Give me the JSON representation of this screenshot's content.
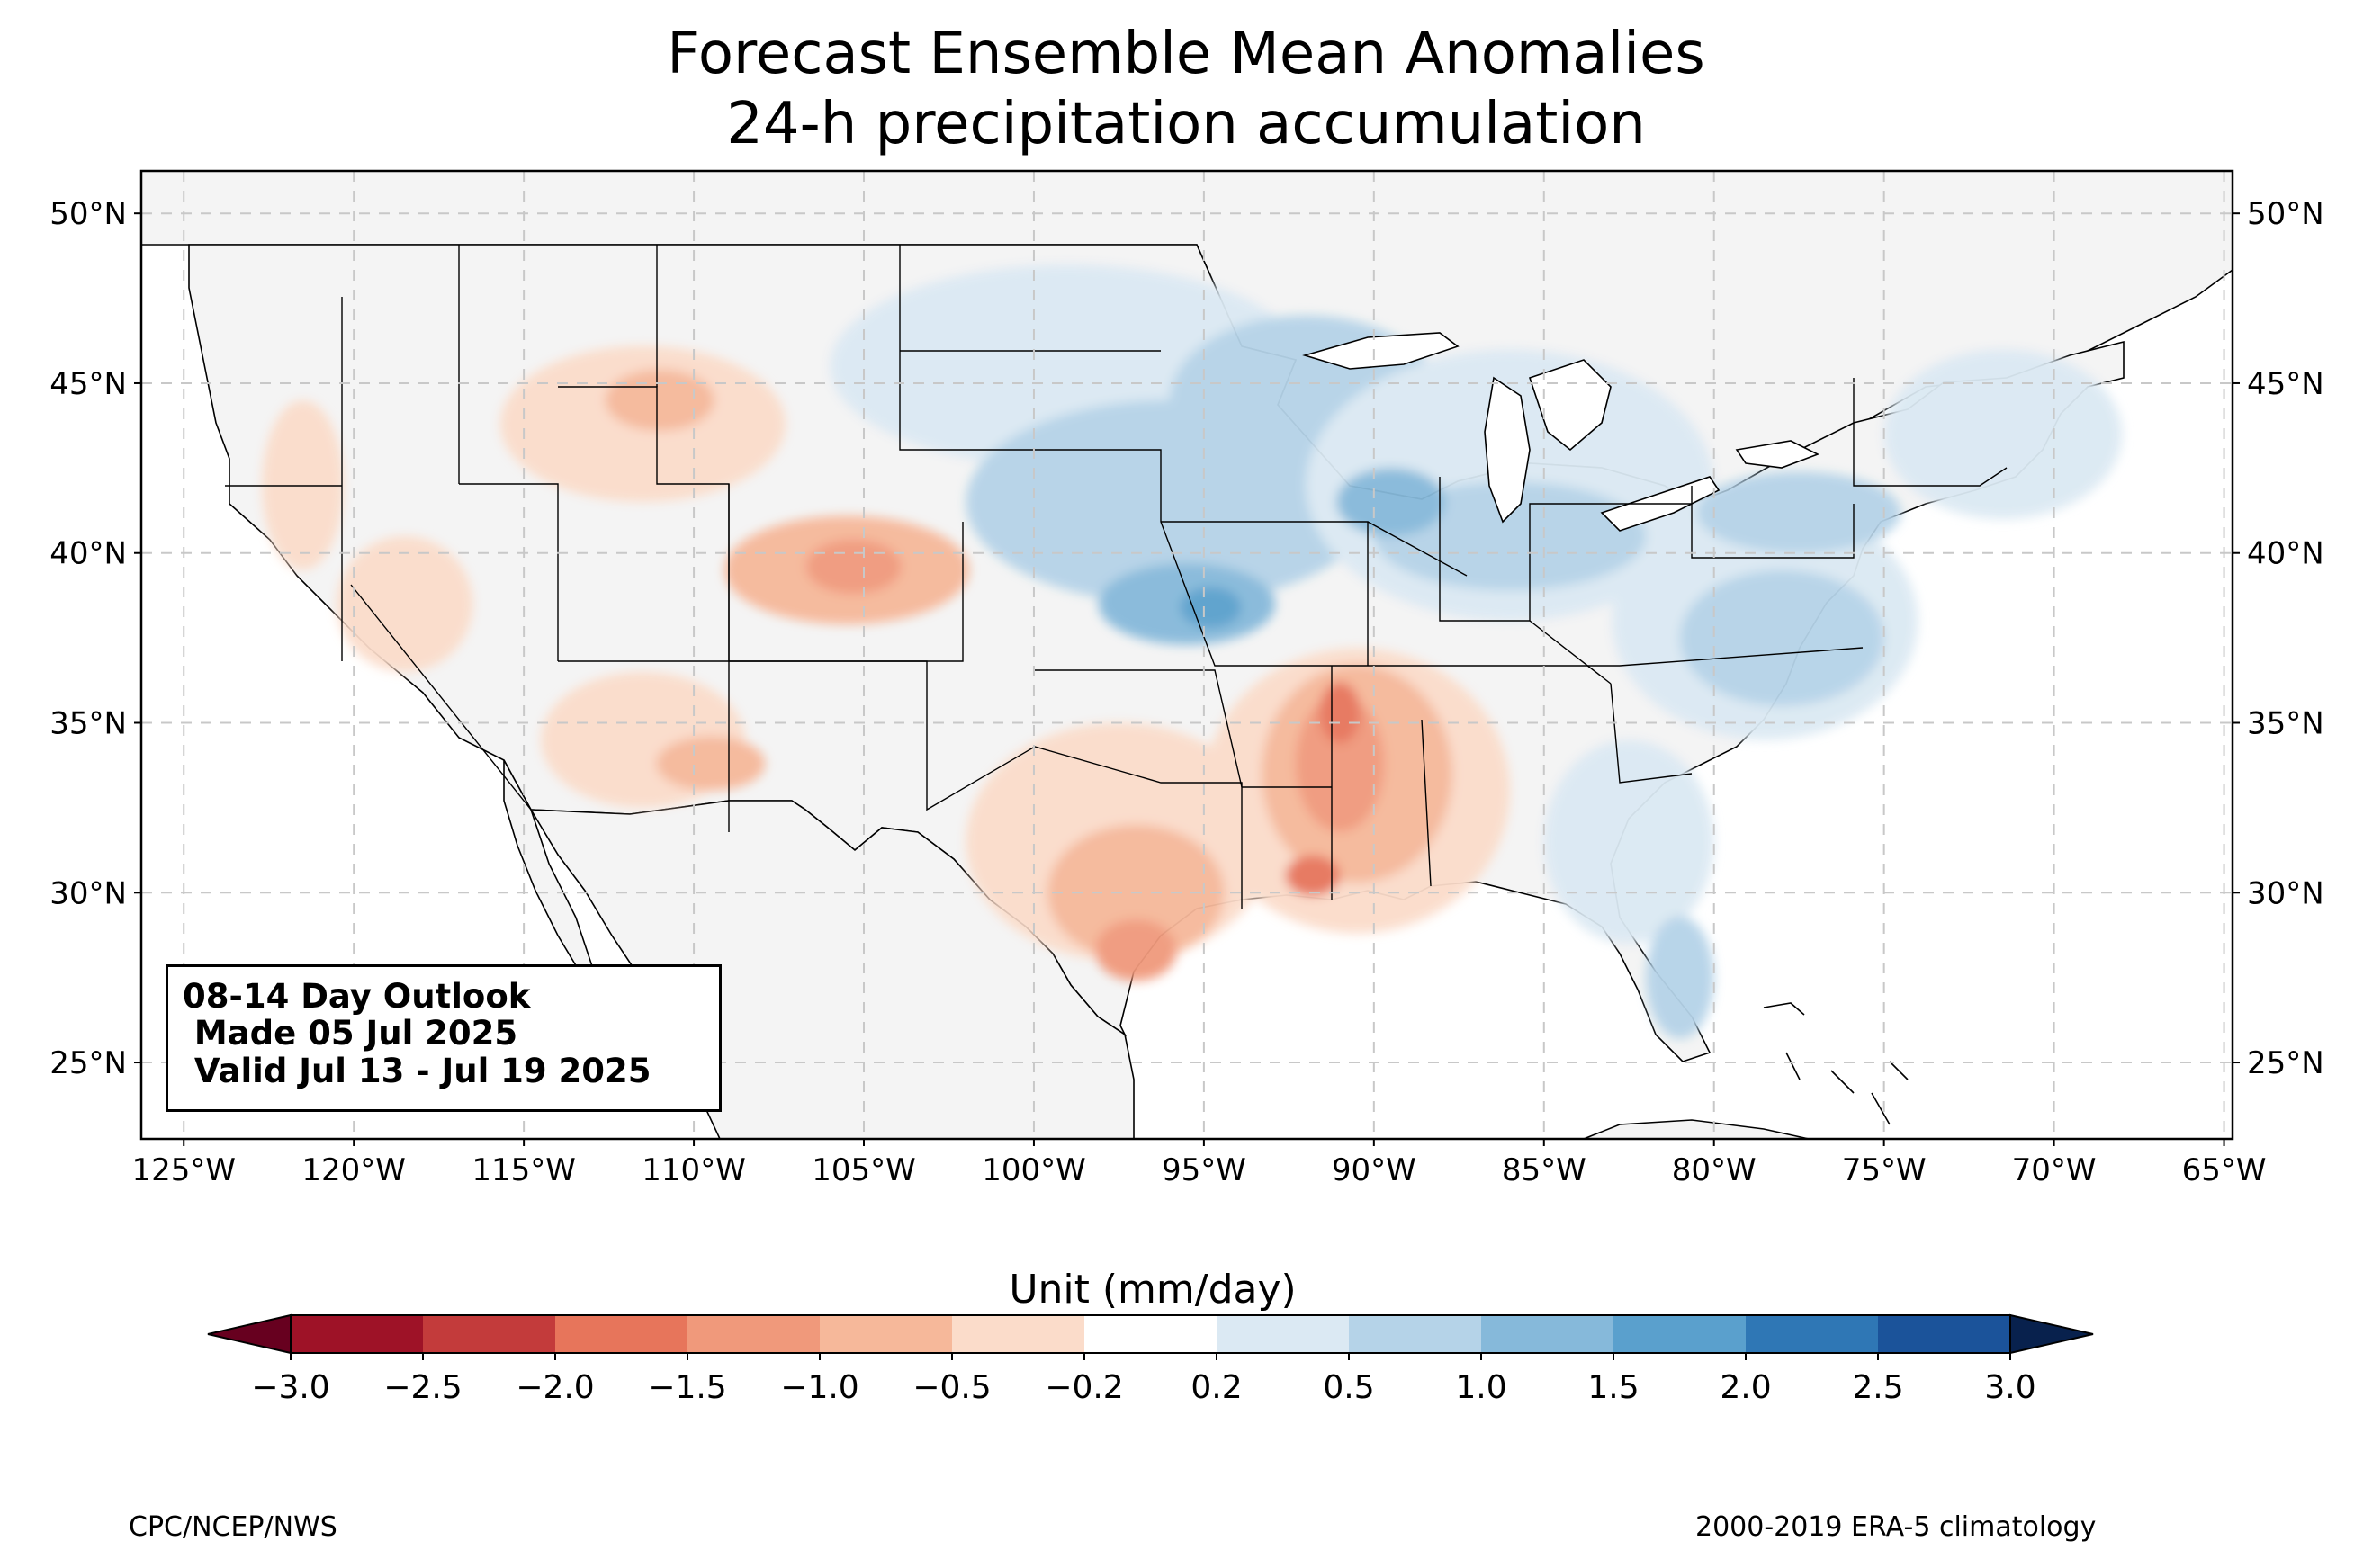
{
  "title": {
    "line1": "Forecast Ensemble Mean Anomalies",
    "line2": "24-h precipitation accumulation"
  },
  "map": {
    "projection": "PlateCarree",
    "lon_range": [
      -126.25,
      -64.75
    ],
    "lat_range": [
      22.75,
      51.25
    ],
    "gridlines": "dashed",
    "lon_ticks": [
      {
        "value": -125,
        "label": "125°W"
      },
      {
        "value": -120,
        "label": "120°W"
      },
      {
        "value": -115,
        "label": "115°W"
      },
      {
        "value": -110,
        "label": "110°W"
      },
      {
        "value": -105,
        "label": "105°W"
      },
      {
        "value": -100,
        "label": "100°W"
      },
      {
        "value": -95,
        "label": "95°W"
      },
      {
        "value": -90,
        "label": "90°W"
      },
      {
        "value": -85,
        "label": "85°W"
      },
      {
        "value": -80,
        "label": "80°W"
      },
      {
        "value": -75,
        "label": "75°W"
      },
      {
        "value": -70,
        "label": "70°W"
      },
      {
        "value": -65,
        "label": "65°W"
      }
    ],
    "lat_ticks": [
      {
        "value": 50,
        "label": "50°N"
      },
      {
        "value": 45,
        "label": "45°N"
      },
      {
        "value": 40,
        "label": "40°N"
      },
      {
        "value": 35,
        "label": "35°N"
      },
      {
        "value": 30,
        "label": "30°N"
      },
      {
        "value": 25,
        "label": "25°N"
      }
    ],
    "land_color": "#f4f4f4",
    "anomaly_regions": [
      {
        "name": "northern-rockies-dry",
        "color": "#fbdcca",
        "lon": -111.5,
        "lat": 43.8,
        "rlon": 4.2,
        "rlat": 2.3
      },
      {
        "name": "northern-rockies-dry-core",
        "color": "#f6b89a",
        "lon": -111.0,
        "lat": 44.5,
        "rlon": 1.6,
        "rlat": 0.9
      },
      {
        "name": "colorado-dry",
        "color": "#f6b89a",
        "lon": -105.5,
        "lat": 39.5,
        "rlon": 3.6,
        "rlat": 1.6
      },
      {
        "name": "colorado-dry-core",
        "color": "#f0997b",
        "lon": -105.3,
        "lat": 39.6,
        "rlon": 1.4,
        "rlat": 0.8
      },
      {
        "name": "southwest-dry",
        "color": "#fbdcca",
        "lon": -111.5,
        "lat": 34.5,
        "rlon": 3.0,
        "rlat": 2.0
      },
      {
        "name": "arizona-dry",
        "color": "#f6b89a",
        "lon": -109.5,
        "lat": 33.8,
        "rlon": 1.6,
        "rlat": 0.8
      },
      {
        "name": "great-basin-dry",
        "color": "#fbdcca",
        "lon": -118.5,
        "lat": 38.5,
        "rlon": 2.0,
        "rlat": 2.0
      },
      {
        "name": "pacific-nw-dry",
        "color": "#fbdcca",
        "lon": -121.5,
        "lat": 42.0,
        "rlon": 1.2,
        "rlat": 2.5
      },
      {
        "name": "texas-dry",
        "color": "#fbdcca",
        "lon": -97.5,
        "lat": 31.5,
        "rlon": 4.5,
        "rlat": 3.5
      },
      {
        "name": "texas-dry-core",
        "color": "#f6b89a",
        "lon": -97.0,
        "lat": 30.0,
        "rlon": 2.6,
        "rlat": 2.0
      },
      {
        "name": "texas-coast-dry",
        "color": "#f0997b",
        "lon": -97.0,
        "lat": 28.3,
        "rlon": 1.2,
        "rlat": 0.9
      },
      {
        "name": "lower-mississippi-dry",
        "color": "#fbdcca",
        "lon": -90.5,
        "lat": 33.0,
        "rlon": 4.5,
        "rlat": 4.2
      },
      {
        "name": "lower-mississippi-dry-mid",
        "color": "#f6b89a",
        "lon": -90.5,
        "lat": 33.5,
        "rlon": 2.8,
        "rlat": 3.2
      },
      {
        "name": "lower-mississippi-dry-core",
        "color": "#f0997b",
        "lon": -91.0,
        "lat": 33.8,
        "rlon": 1.3,
        "rlat": 2.0
      },
      {
        "name": "louisiana-dry-core",
        "color": "#e7755b",
        "lon": -91.8,
        "lat": 30.5,
        "rlon": 0.8,
        "rlat": 0.6
      },
      {
        "name": "arkansas-dry-core",
        "color": "#e7755b",
        "lon": -91.0,
        "lat": 35.3,
        "rlon": 0.6,
        "rlat": 0.9
      },
      {
        "name": "northern-plains-wet",
        "color": "#dbe9f3",
        "lon": -99.0,
        "lat": 45.5,
        "rlon": 7.0,
        "rlat": 3.0
      },
      {
        "name": "central-plains-wet",
        "color": "#b5d3e8",
        "lon": -96.0,
        "lat": 41.5,
        "rlon": 6.0,
        "rlat": 3.0
      },
      {
        "name": "upper-midwest-wet",
        "color": "#b5d3e8",
        "lon": -92.0,
        "lat": 44.5,
        "rlon": 4.0,
        "rlat": 2.5
      },
      {
        "name": "kansas-wet-core",
        "color": "#86b9da",
        "lon": -95.5,
        "lat": 38.5,
        "rlon": 2.6,
        "rlat": 1.2
      },
      {
        "name": "kansas-wet-max",
        "color": "#5aa0cd",
        "lon": -94.8,
        "lat": 38.4,
        "rlon": 0.9,
        "rlat": 0.6
      },
      {
        "name": "great-lakes-wet",
        "color": "#dbe9f3",
        "lon": -86.0,
        "lat": 42.0,
        "rlon": 6.0,
        "rlat": 4.0
      },
      {
        "name": "ohio-valley-wet",
        "color": "#b5d3e8",
        "lon": -86.0,
        "lat": 40.5,
        "rlon": 4.0,
        "rlat": 1.6
      },
      {
        "name": "illinois-wet",
        "color": "#86b9da",
        "lon": -89.5,
        "lat": 41.5,
        "rlon": 1.6,
        "rlat": 1.0
      },
      {
        "name": "mid-atlantic-wet",
        "color": "#dbe9f3",
        "lon": -78.5,
        "lat": 38.0,
        "rlon": 4.5,
        "rlat": 3.5
      },
      {
        "name": "virginia-wet",
        "color": "#b5d3e8",
        "lon": -78.0,
        "lat": 37.5,
        "rlon": 3.0,
        "rlat": 2.0
      },
      {
        "name": "pennsylvania-wet",
        "color": "#b5d3e8",
        "lon": -77.5,
        "lat": 41.2,
        "rlon": 3.0,
        "rlat": 1.2
      },
      {
        "name": "new-england-wet",
        "color": "#dbe9f3",
        "lon": -71.5,
        "lat": 43.5,
        "rlon": 3.5,
        "rlat": 2.5
      },
      {
        "name": "southeast-wet",
        "color": "#dbe9f3",
        "lon": -82.5,
        "lat": 31.5,
        "rlon": 2.5,
        "rlat": 3.0
      },
      {
        "name": "florida-wet",
        "color": "#b5d3e8",
        "lon": -81.0,
        "lat": 27.5,
        "rlon": 1.0,
        "rlat": 1.8
      }
    ]
  },
  "outlook": {
    "line1": "08-14 Day Outlook",
    "line2": " Made 05 Jul 2025",
    "line3": " Valid Jul 13 - Jul 19 2025"
  },
  "colorbar": {
    "label": "Unit (mm/day)",
    "levels": [
      -3.0,
      -2.5,
      -2.0,
      -1.5,
      -1.0,
      -0.5,
      -0.2,
      0.2,
      0.5,
      1.0,
      1.5,
      2.0,
      2.5,
      3.0
    ],
    "tick_labels": [
      "−3.0",
      "−2.5",
      "−2.0",
      "−1.5",
      "−1.0",
      "−0.5",
      "−0.2",
      "0.2",
      "0.5",
      "1.0",
      "1.5",
      "2.0",
      "2.5",
      "3.0"
    ],
    "colors": [
      "#9e1227",
      "#c33b3b",
      "#e7755b",
      "#f0997b",
      "#f6b89a",
      "#fbdcca",
      "#ffffff",
      "#dbe9f3",
      "#b5d3e8",
      "#86b9da",
      "#5aa0cd",
      "#2f77b5",
      "#1b539a"
    ],
    "under_color": "#67001f",
    "over_color": "#08214d"
  },
  "credits": {
    "left": "CPC/NCEP/NWS",
    "right": "2000-2019 ERA-5 climatology"
  }
}
